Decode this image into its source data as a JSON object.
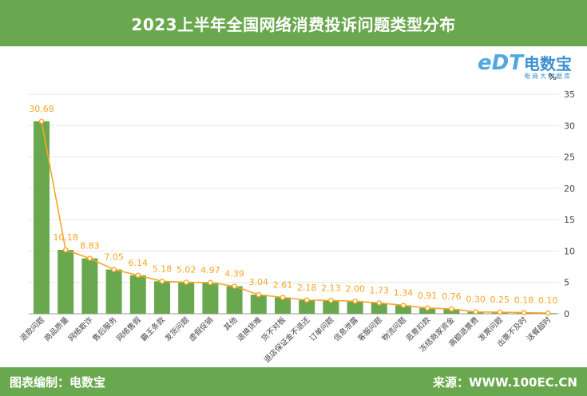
{
  "header": {
    "title": "2023上半年全国网络消费投诉问题类型分布"
  },
  "footer": {
    "left": "图表编制：电数宝",
    "right": "来源：WWW.100EC.CN"
  },
  "logo": {
    "mark": "eDT",
    "name": "电数宝",
    "sub": "电商大数据库"
  },
  "colors": {
    "bar": "#6aa84f",
    "line": "#f5a623",
    "label": "#f5a623",
    "header": "#6aa84f"
  },
  "chart_data": {
    "type": "bar",
    "title": "2023上半年全国网络消费投诉问题类型分布",
    "ylabel": "%",
    "ylim": [
      0,
      35
    ],
    "yticks": [
      0,
      5,
      10,
      15,
      20,
      25,
      30,
      35
    ],
    "grid": true,
    "y_axis_side": "right",
    "categories": [
      "退款问题",
      "商品质量",
      "网络欺诈",
      "售后服务",
      "网络售假",
      "霸王条款",
      "发货问题",
      "虚假促销",
      "其他",
      "退换货难",
      "货不对板",
      "退店保证金不退还",
      "订单问题",
      "信息泄露",
      "客服问题",
      "物流问题",
      "恶意扣款",
      "冻结商家资金",
      "高额退票费",
      "发票问题",
      "出票不及时",
      "送餐超时"
    ],
    "series": [
      {
        "type": "bar",
        "values": [
          30.68,
          10.18,
          8.83,
          7.05,
          6.14,
          5.18,
          5.02,
          4.97,
          4.39,
          3.04,
          2.61,
          2.18,
          2.13,
          2.0,
          1.73,
          1.34,
          0.91,
          0.76,
          0.3,
          0.25,
          0.18,
          0.1
        ]
      },
      {
        "type": "line",
        "values": [
          30.68,
          10.18,
          8.83,
          7.05,
          6.14,
          5.18,
          5.02,
          4.97,
          4.39,
          3.04,
          2.61,
          2.18,
          2.13,
          2.0,
          1.73,
          1.34,
          0.91,
          0.76,
          0.3,
          0.25,
          0.18,
          0.1
        ]
      }
    ],
    "data_labels": [
      "30.68",
      "10.18",
      "8.83",
      "7.05",
      "6.14",
      "5.18",
      "5.02",
      "4.97",
      "4.39",
      "3.04",
      "2.61",
      "2.18",
      "2.13",
      "2.00",
      "1.73",
      "1.34",
      "0.91",
      "0.76",
      "0.30",
      "0.25",
      "0.18",
      "0.10"
    ]
  }
}
